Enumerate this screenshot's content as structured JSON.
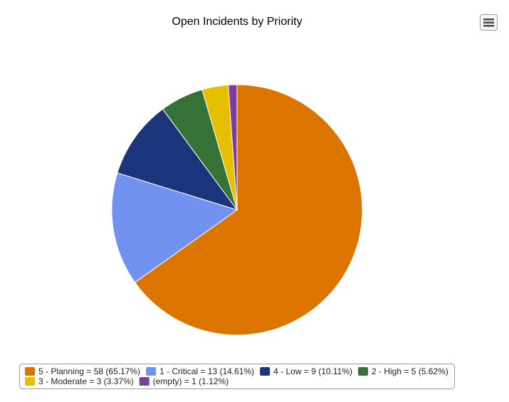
{
  "chart_data": {
    "type": "pie",
    "title": "Open Incidents by Priority",
    "categories": [
      "5 - Planning = 58 (65.17%)",
      "1 - Critical = 13 (14.61%)",
      "4 - Low = 9 (10.11%)",
      "2 - High = 5 (5.62%)",
      "3 - Moderate = 3 (3.37%)",
      "(empty) = 1 (1.12%)"
    ],
    "values": [
      58,
      13,
      9,
      5,
      3,
      1
    ],
    "colors": [
      "#db7500",
      "#7192f0",
      "#1c347c",
      "#367235",
      "#e5bf00",
      "#7d3f98"
    ],
    "legend_position": "bottom"
  }
}
